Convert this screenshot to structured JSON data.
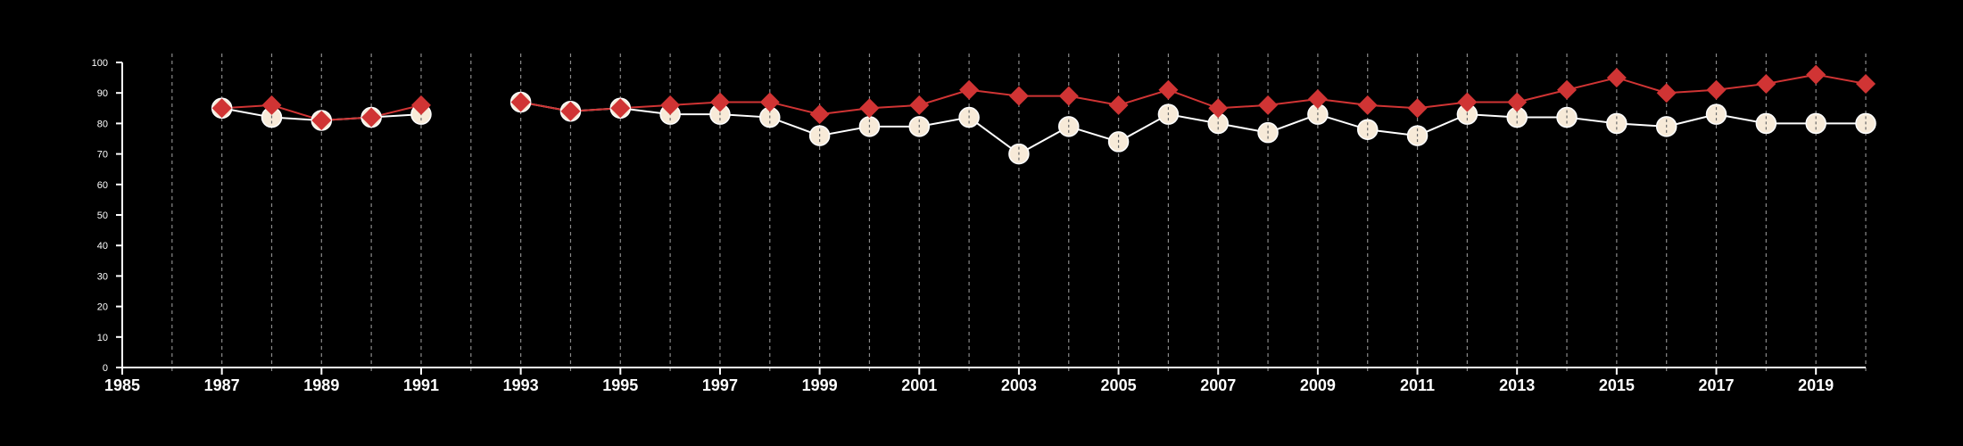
{
  "chart_data": {
    "type": "line",
    "title": "",
    "xlabel": "",
    "ylabel": "",
    "xlim": [
      1985,
      2020
    ],
    "ylim": [
      0,
      100
    ],
    "x_ticks": [
      1985,
      1987,
      1989,
      1991,
      1993,
      1995,
      1997,
      1999,
      2001,
      2003,
      2005,
      2007,
      2009,
      2011,
      2013,
      2015,
      2017,
      2019
    ],
    "y_ticks": [
      0,
      10,
      20,
      30,
      40,
      50,
      60,
      70,
      80,
      90,
      100
    ],
    "x_tick_labels": [
      "1985",
      "1987",
      "1989",
      "1991",
      "1993",
      "1995",
      "1997",
      "1999",
      "2001",
      "2003",
      "2005",
      "2007",
      "2009",
      "2011",
      "2013",
      "2015",
      "2017",
      "2019"
    ],
    "y_tick_labels": [
      "0",
      "10",
      "20",
      "30",
      "40",
      "50",
      "60",
      "70",
      "80",
      "90",
      "100"
    ],
    "vertical_gridlines": "dashed, yearly",
    "legend": "none",
    "x": [
      1987,
      1988,
      1989,
      1990,
      1991,
      1992,
      1993,
      1994,
      1995,
      1996,
      1997,
      1998,
      1999,
      2000,
      2001,
      2002,
      2003,
      2004,
      2005,
      2006,
      2007,
      2008,
      2009,
      2010,
      2011,
      2012,
      2013,
      2014,
      2015,
      2016,
      2017,
      2018,
      2019,
      2020
    ],
    "series": [
      {
        "marker": "circle",
        "color": "#ffffff",
        "marker_fill": "#f7ead8",
        "values": [
          85,
          82,
          81,
          82,
          83,
          null,
          87,
          84,
          85,
          83,
          83,
          82,
          76,
          79,
          79,
          82,
          70,
          79,
          74,
          83,
          80,
          77,
          83,
          78,
          76,
          83,
          82,
          82,
          80,
          79,
          83,
          80,
          80,
          80
        ]
      },
      {
        "marker": "diamond",
        "color": "#d03434",
        "marker_fill": "#d03434",
        "values": [
          85,
          86,
          81,
          82,
          86,
          null,
          87,
          84,
          85,
          86,
          87,
          87,
          83,
          85,
          86,
          91,
          89,
          89,
          86,
          91,
          85,
          86,
          88,
          86,
          85,
          87,
          87,
          91,
          95,
          90,
          91,
          93,
          96,
          93
        ]
      }
    ]
  }
}
